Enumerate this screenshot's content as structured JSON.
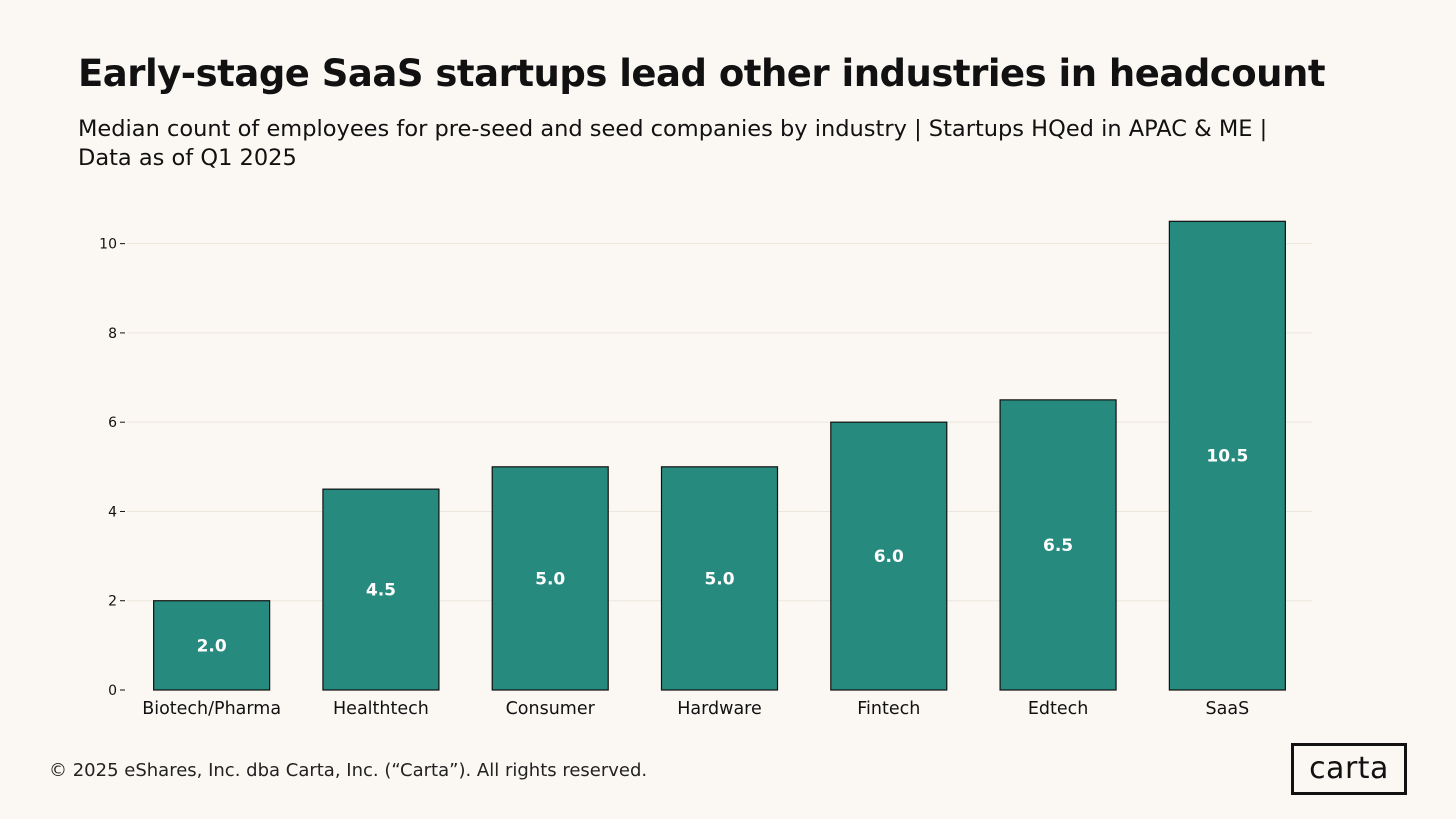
{
  "chart_data": {
    "type": "bar",
    "title": "Early-stage SaaS startups lead other industries in headcount",
    "subtitle": "Median count of employees for pre-seed and seed companies by industry | Startups HQed in APAC & ME | Data as of Q1 2025",
    "categories": [
      "Biotech/Pharma",
      "Healthtech",
      "Consumer",
      "Hardware",
      "Fintech",
      "Edtech",
      "SaaS"
    ],
    "values": [
      2.0,
      4.5,
      5.0,
      5.0,
      6.0,
      6.5,
      10.5
    ],
    "data_labels": [
      "2.0",
      "4.5",
      "5.0",
      "5.0",
      "6.0",
      "6.5",
      "10.5"
    ],
    "yticks": [
      0,
      2,
      4,
      6,
      8,
      10
    ],
    "ytick_labels": [
      "0",
      "2",
      "4",
      "6",
      "8",
      "10"
    ],
    "ylim": [
      0,
      11
    ],
    "xlabel": "",
    "ylabel": "",
    "grid": true,
    "bar_color": "#268a7e",
    "bar_outline_color": "#111111",
    "label_color": "#ffffff",
    "grid_color": "#ece6dc"
  },
  "footer": {
    "copyright": "© 2025 eShares, Inc. dba Carta, Inc. (“Carta”). All rights reserved."
  },
  "logo": {
    "text": "carta"
  }
}
